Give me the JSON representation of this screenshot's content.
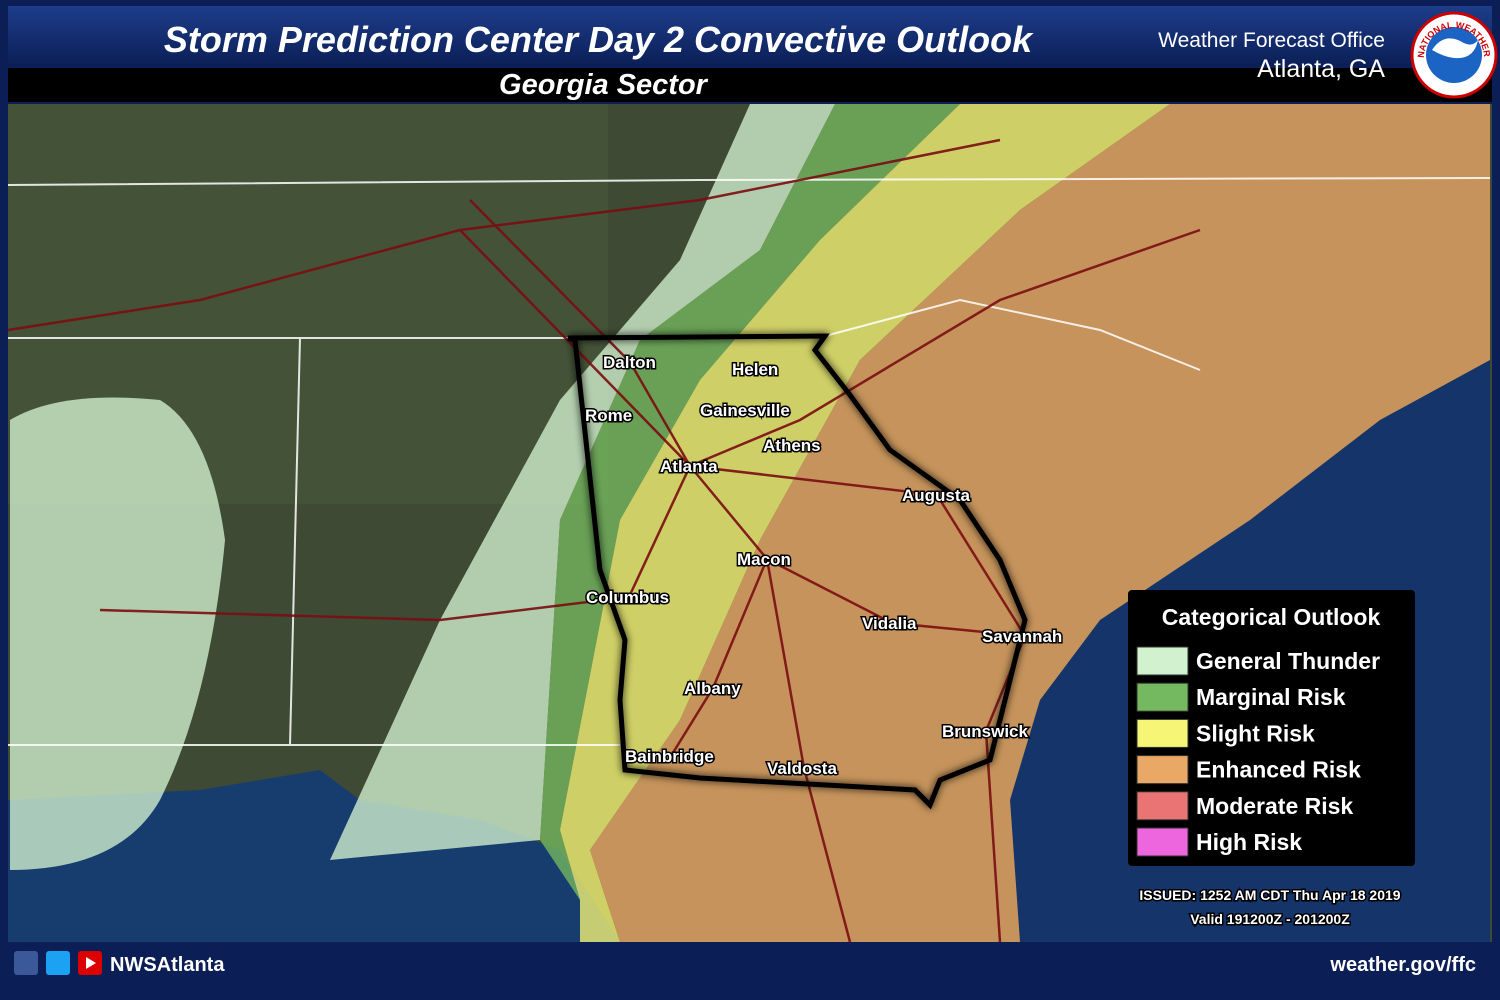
{
  "header": {
    "title": "Storm Prediction Center Day 2 Convective Outlook",
    "subtitle": "Georgia Sector",
    "office_line1": "Weather Forecast Office",
    "office_line2": "Atlanta, GA",
    "logo_text": "NATIONAL WEATHER SERVICE"
  },
  "map": {
    "cities": [
      "Dalton",
      "Helen",
      "Rome",
      "Gainesville",
      "Athens",
      "Atlanta",
      "Augusta",
      "Macon",
      "Columbus",
      "Vidalia",
      "Savannah",
      "Albany",
      "Brunswick",
      "Bainbridge",
      "Valdosta"
    ]
  },
  "legend": {
    "title": "Categorical Outlook",
    "items": [
      {
        "label": "General Thunder",
        "color": "#d2f2cf"
      },
      {
        "label": "Marginal Risk",
        "color": "#74b95f"
      },
      {
        "label": "Slight Risk",
        "color": "#f6f575"
      },
      {
        "label": "Enhanced Risk",
        "color": "#eaa866"
      },
      {
        "label": "Moderate Risk",
        "color": "#ea7474"
      },
      {
        "label": "High Risk",
        "color": "#ee66dd"
      }
    ]
  },
  "issued": {
    "line1": "ISSUED: 1252 AM CDT Thu Apr 18 2019",
    "line2": "Valid 191200Z - 201200Z"
  },
  "footer": {
    "handle": "NWSAtlanta",
    "url": "weather.gov/ffc"
  }
}
